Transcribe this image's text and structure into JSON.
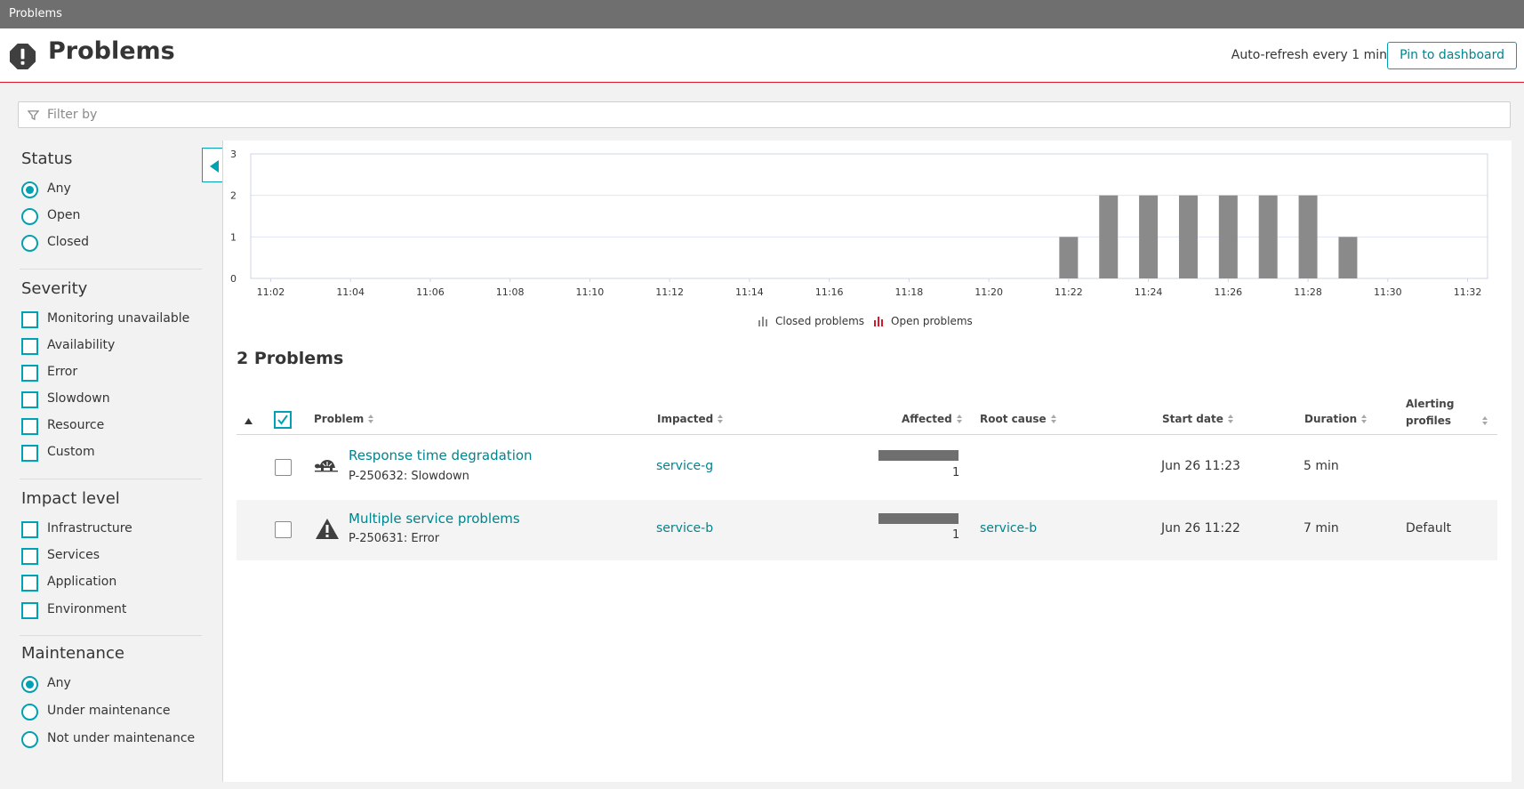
{
  "window": {
    "title": "Problems"
  },
  "header": {
    "title": "Problems",
    "icon": "exclamation-octagon-icon",
    "auto_refresh": "Auto-refresh every 1 min",
    "pin_button": "Pin to dashboard"
  },
  "filter": {
    "placeholder": "Filter by",
    "icon": "funnel-icon"
  },
  "sidebar": {
    "status": {
      "title": "Status",
      "options": [
        {
          "label": "Any",
          "selected": true
        },
        {
          "label": "Open",
          "selected": false
        },
        {
          "label": "Closed",
          "selected": false
        }
      ]
    },
    "severity": {
      "title": "Severity",
      "options": [
        {
          "label": "Monitoring unavailable",
          "checked": false
        },
        {
          "label": "Availability",
          "checked": false
        },
        {
          "label": "Error",
          "checked": false
        },
        {
          "label": "Slowdown",
          "checked": false
        },
        {
          "label": "Resource",
          "checked": false
        },
        {
          "label": "Custom",
          "checked": false
        }
      ]
    },
    "impact": {
      "title": "Impact level",
      "options": [
        {
          "label": "Infrastructure",
          "checked": false
        },
        {
          "label": "Services",
          "checked": false
        },
        {
          "label": "Application",
          "checked": false
        },
        {
          "label": "Environment",
          "checked": false
        }
      ]
    },
    "maintenance": {
      "title": "Maintenance",
      "options": [
        {
          "label": "Any",
          "selected": true
        },
        {
          "label": "Under maintenance",
          "selected": false
        },
        {
          "label": "Not under maintenance",
          "selected": false
        }
      ]
    }
  },
  "chart_data": {
    "type": "bar",
    "x_ticks": [
      "11:02",
      "11:04",
      "11:06",
      "11:08",
      "11:10",
      "11:12",
      "11:14",
      "11:16",
      "11:18",
      "11:20",
      "11:22",
      "11:24",
      "11:26",
      "11:28",
      "11:30",
      "11:32"
    ],
    "xlim_minutes": [
      "11:01.5",
      "11:32.5"
    ],
    "x_minutes": [
      "11:22",
      "11:23",
      "11:24",
      "11:25",
      "11:26",
      "11:27",
      "11:28",
      "11:29"
    ],
    "series": [
      {
        "name": "Closed problems",
        "values": [
          1,
          2,
          2,
          2,
          2,
          2,
          2,
          1
        ],
        "color": "#8a8a8a"
      },
      {
        "name": "Open problems",
        "values": [
          0,
          0,
          0,
          0,
          0,
          0,
          0,
          0
        ],
        "color": "#dc172a"
      }
    ],
    "yticks": [
      0,
      1,
      2,
      3
    ],
    "ylim": [
      0,
      3
    ],
    "grid": true,
    "legend": "bottom-center"
  },
  "problems": {
    "count_label": "2 Problems",
    "columns": {
      "problem": "Problem",
      "impacted": "Impacted",
      "affected": "Affected",
      "root_cause": "Root cause",
      "start_date": "Start date",
      "duration": "Duration",
      "alerting_1": "Alerting",
      "alerting_2": "profiles"
    },
    "rows": [
      {
        "icon": "slowdown-turtle-icon",
        "title": "Response time degradation",
        "id": "P-250632: Slowdown",
        "impacted": "service-g",
        "affected_value": 1,
        "affected": "1",
        "root_cause": "",
        "start_date": "Jun 26 11:23",
        "duration": "5 min",
        "alerting_profile": ""
      },
      {
        "icon": "warning-triangle-icon",
        "title": "Multiple service problems",
        "id": "P-250631: Error",
        "impacted": "service-b",
        "affected_value": 1,
        "affected": "1",
        "root_cause": "service-b",
        "start_date": "Jun 26 11:22",
        "duration": "7 min",
        "alerting_profile": "Default"
      }
    ]
  },
  "colors": {
    "accent": "#00a1b2",
    "link": "#00848e",
    "alert_red": "#dc172a",
    "bar_gray": "#8a8a8a"
  }
}
